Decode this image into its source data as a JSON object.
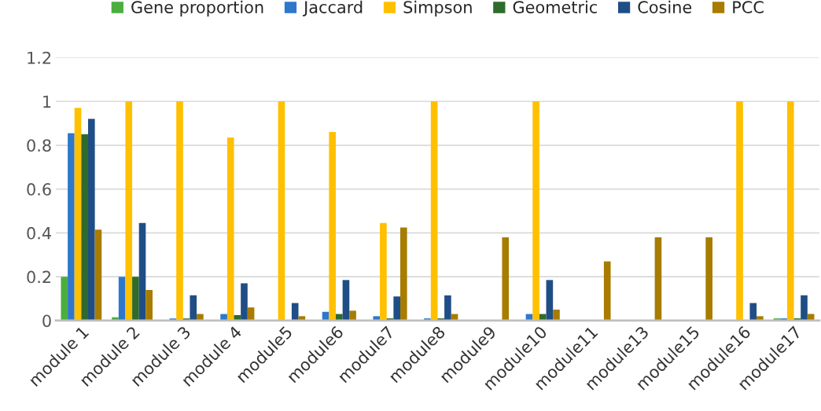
{
  "chart_data": {
    "type": "bar",
    "categories": [
      "module 1",
      "module 2",
      "module 3",
      "module 4",
      "module5",
      "module6",
      "module7",
      "module8",
      "module9",
      "module10",
      "module11",
      "module13",
      "module15",
      "module16",
      "module17"
    ],
    "series": [
      {
        "name": "Gene proportion",
        "color": "#4cae3f",
        "values": [
          0.2,
          0.015,
          null,
          null,
          null,
          null,
          null,
          null,
          null,
          null,
          null,
          null,
          null,
          null,
          0.01
        ]
      },
      {
        "name": "Jaccard",
        "color": "#2e78cc",
        "values": [
          0.855,
          0.2,
          0.01,
          0.03,
          null,
          0.04,
          0.02,
          0.01,
          null,
          0.03,
          null,
          null,
          null,
          null,
          0.01
        ]
      },
      {
        "name": "Simpson",
        "color": "#ffc000",
        "values": [
          0.97,
          1,
          1,
          0.835,
          1,
          0.86,
          0.445,
          1,
          null,
          1,
          null,
          null,
          null,
          1,
          1
        ]
      },
      {
        "name": "Geometric",
        "color": "#2f6b2a",
        "values": [
          0.85,
          0.2,
          0.01,
          0.025,
          null,
          0.03,
          0.01,
          0.01,
          null,
          0.03,
          null,
          null,
          null,
          null,
          0.01
        ]
      },
      {
        "name": "Cosine",
        "color": "#1f4e86",
        "values": [
          0.92,
          0.445,
          0.115,
          0.17,
          0.08,
          0.185,
          0.11,
          0.115,
          null,
          0.185,
          null,
          null,
          null,
          0.08,
          0.115
        ]
      },
      {
        "name": "PCC",
        "color": "#a77c00",
        "values": [
          0.415,
          0.14,
          0.03,
          0.06,
          0.02,
          0.045,
          0.425,
          0.03,
          0.38,
          0.05,
          0.27,
          0.38,
          0.38,
          0.02,
          0.03
        ]
      }
    ],
    "ylim": [
      0,
      1.2
    ],
    "yticks": [
      0,
      0.2,
      0.4,
      0.6,
      0.8,
      1,
      1.2
    ],
    "grid": "y",
    "legend": "top"
  }
}
